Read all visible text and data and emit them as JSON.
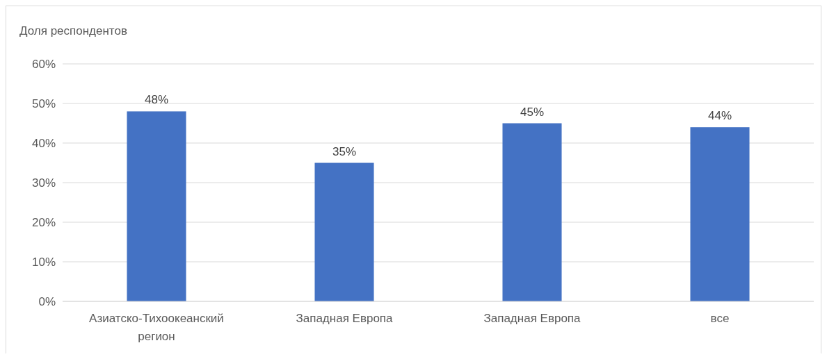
{
  "chart_data": {
    "type": "bar",
    "ylabel": "Доля респондентов",
    "categories": [
      "Азиатско-Тихоокеанский регион",
      "Западная Европа",
      "Западная Европа",
      "все"
    ],
    "values": [
      48,
      35,
      45,
      44
    ],
    "color": "#4472c4",
    "value_labels": [
      "48%",
      "35%",
      "45%",
      "44%"
    ],
    "ylim": [
      0,
      60
    ],
    "yticks": [
      {
        "value": 0,
        "label": "0%"
      },
      {
        "value": 10,
        "label": "10%"
      },
      {
        "value": 20,
        "label": "20%"
      },
      {
        "value": 30,
        "label": "30%"
      },
      {
        "value": 40,
        "label": "40%"
      },
      {
        "value": 50,
        "label": "50%"
      },
      {
        "value": 60,
        "label": "60%"
      }
    ],
    "grid": "y"
  }
}
